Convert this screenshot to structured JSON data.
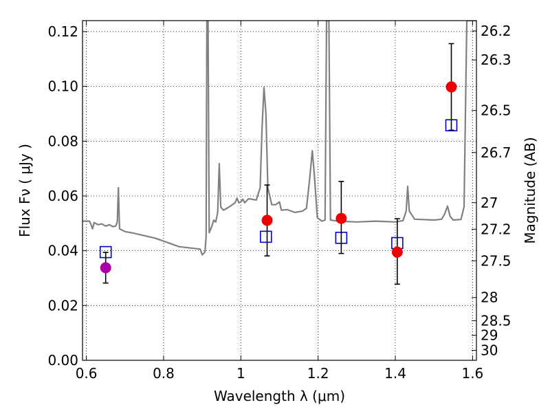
{
  "chart_data": {
    "type": "scatter",
    "xlabel": "Wavelength  λ (μm)",
    "ylabel": "Flux  Fν  ( μJy )",
    "ylabel_right": "Magnitude (AB)",
    "xlim": [
      0.59,
      1.61
    ],
    "ylim": [
      0.0,
      0.124
    ],
    "grid": true,
    "x_ticks": [
      0.6,
      0.8,
      1.0,
      1.2,
      1.4,
      1.6
    ],
    "x_tick_labels": [
      "0.6",
      "0.8",
      "1",
      "1.2",
      "1.4",
      "1.6"
    ],
    "y_ticks": [
      0.0,
      0.02,
      0.04,
      0.06,
      0.08,
      0.1,
      0.12
    ],
    "y_tick_labels": [
      "0.00",
      "0.02",
      "0.04",
      "0.06",
      "0.08",
      "0.10",
      "0.12"
    ],
    "mag_ticks": [
      26.2,
      26.3,
      26.5,
      26.7,
      27,
      27.2,
      27.5,
      28,
      28.5,
      29,
      30
    ],
    "mag_tick_labels": [
      "26.2",
      "26.3",
      "26.5",
      "26.7",
      "27",
      "27.2",
      "27.5",
      "28",
      "28.5",
      "29",
      "30"
    ],
    "series": [
      {
        "kind": "spectrum",
        "color": "#808080",
        "points": [
          [
            0.59,
            0.0508
          ],
          [
            0.608,
            0.0508
          ],
          [
            0.612,
            0.0495
          ],
          [
            0.616,
            0.048
          ],
          [
            0.62,
            0.0503
          ],
          [
            0.63,
            0.0495
          ],
          [
            0.64,
            0.0498
          ],
          [
            0.65,
            0.049
          ],
          [
            0.66,
            0.0495
          ],
          [
            0.668,
            0.0488
          ],
          [
            0.676,
            0.049
          ],
          [
            0.68,
            0.0505
          ],
          [
            0.683,
            0.063
          ],
          [
            0.686,
            0.048
          ],
          [
            0.7,
            0.047
          ],
          [
            0.72,
            0.0465
          ],
          [
            0.75,
            0.0455
          ],
          [
            0.78,
            0.0445
          ],
          [
            0.81,
            0.043
          ],
          [
            0.84,
            0.0415
          ],
          [
            0.87,
            0.041
          ],
          [
            0.895,
            0.0406
          ],
          [
            0.9,
            0.0385
          ],
          [
            0.907,
            0.0395
          ],
          [
            0.91,
            0.045
          ],
          [
            0.912,
            0.124
          ],
          [
            0.915,
            0.124
          ],
          [
            0.918,
            0.0466
          ],
          [
            0.925,
            0.049
          ],
          [
            0.93,
            0.0512
          ],
          [
            0.935,
            0.0505
          ],
          [
            0.94,
            0.054
          ],
          [
            0.944,
            0.0718
          ],
          [
            0.948,
            0.056
          ],
          [
            0.955,
            0.0548
          ],
          [
            0.965,
            0.0556
          ],
          [
            0.975,
            0.0565
          ],
          [
            0.985,
            0.0575
          ],
          [
            0.99,
            0.0592
          ],
          [
            0.995,
            0.0575
          ],
          [
            1.0,
            0.0578
          ],
          [
            1.005,
            0.0588
          ],
          [
            1.01,
            0.0575
          ],
          [
            1.02,
            0.059
          ],
          [
            1.04,
            0.0585
          ],
          [
            1.05,
            0.063
          ],
          [
            1.055,
            0.085
          ],
          [
            1.06,
            0.0996
          ],
          [
            1.065,
            0.09
          ],
          [
            1.07,
            0.063
          ],
          [
            1.08,
            0.0568
          ],
          [
            1.09,
            0.0568
          ],
          [
            1.1,
            0.0578
          ],
          [
            1.105,
            0.0548
          ],
          [
            1.12,
            0.055
          ],
          [
            1.14,
            0.054
          ],
          [
            1.16,
            0.0545
          ],
          [
            1.17,
            0.0555
          ],
          [
            1.178,
            0.066
          ],
          [
            1.185,
            0.0765
          ],
          [
            1.19,
            0.068
          ],
          [
            1.198,
            0.052
          ],
          [
            1.21,
            0.0508
          ],
          [
            1.218,
            0.0512
          ],
          [
            1.222,
            0.124
          ],
          [
            1.228,
            0.124
          ],
          [
            1.232,
            0.0512
          ],
          [
            1.25,
            0.0508
          ],
          [
            1.3,
            0.0505
          ],
          [
            1.35,
            0.0508
          ],
          [
            1.4,
            0.0505
          ],
          [
            1.42,
            0.051
          ],
          [
            1.428,
            0.0545
          ],
          [
            1.432,
            0.0635
          ],
          [
            1.436,
            0.0545
          ],
          [
            1.45,
            0.0515
          ],
          [
            1.5,
            0.0512
          ],
          [
            1.52,
            0.0515
          ],
          [
            1.528,
            0.0535
          ],
          [
            1.535,
            0.0563
          ],
          [
            1.542,
            0.0525
          ],
          [
            1.55,
            0.0512
          ],
          [
            1.57,
            0.0514
          ],
          [
            1.578,
            0.056
          ],
          [
            1.585,
            0.124
          ],
          [
            1.61,
            0.124
          ]
        ]
      },
      {
        "kind": "model-photometry",
        "marker": "open-square",
        "color": "#0000cc",
        "x": [
          0.65,
          1.065,
          1.26,
          1.405,
          1.545
        ],
        "y": [
          0.0395,
          0.0451,
          0.0447,
          0.0428,
          0.0858
        ]
      },
      {
        "kind": "observed-photometry",
        "marker": "filled-circle",
        "x": [
          0.65,
          1.068,
          1.26,
          1.405,
          1.545
        ],
        "y": [
          0.0338,
          0.0511,
          0.0518,
          0.0395,
          0.0998
        ],
        "yerr_low": [
          0.0282,
          0.0381,
          0.039,
          0.0278,
          0.084
        ],
        "yerr_high": [
          0.0394,
          0.064,
          0.0653,
          0.0517,
          0.1156
        ],
        "colors": [
          "#aa00aa",
          "#ee0000",
          "#ee0000",
          "#ee0000",
          "#ee0000"
        ]
      }
    ]
  }
}
